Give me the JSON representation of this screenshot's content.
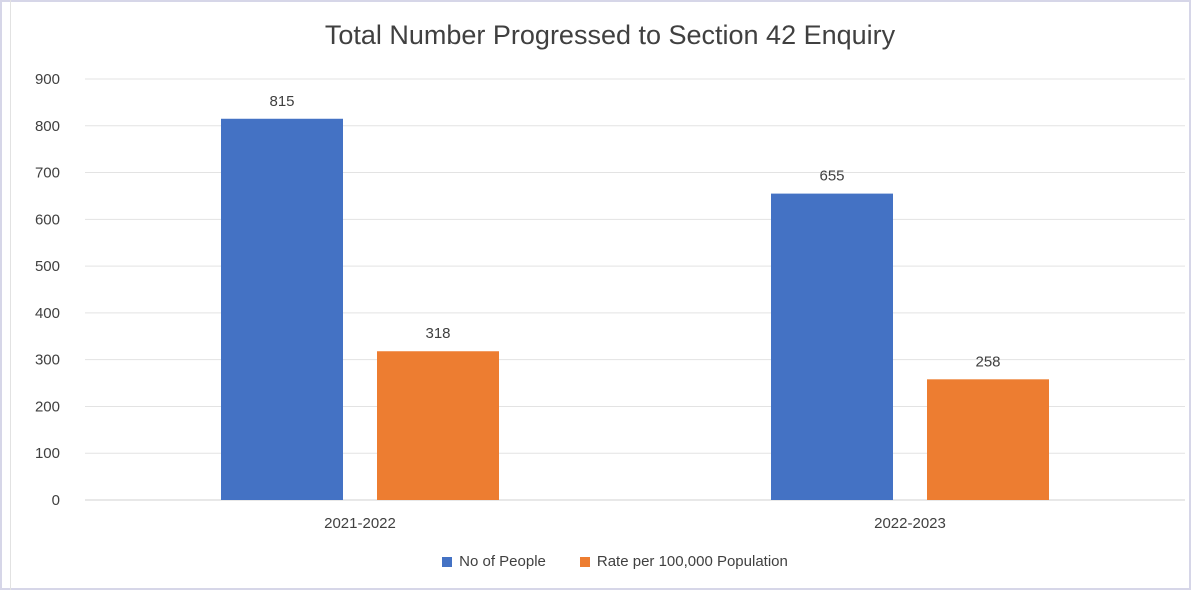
{
  "chart_data": {
    "type": "bar",
    "title": "Total Number Progressed to Section 42 Enquiry",
    "categories": [
      "2021-2022",
      "2022-2023"
    ],
    "series": [
      {
        "name": "No of People",
        "values": [
          815,
          655
        ],
        "color": "#4472c4"
      },
      {
        "name": "Rate per 100,000 Population",
        "values": [
          318,
          258
        ],
        "color": "#ed7d31"
      }
    ],
    "ylim": [
      0,
      900
    ],
    "yticks": [
      0,
      100,
      200,
      300,
      400,
      500,
      600,
      700,
      800,
      900
    ],
    "grid": true,
    "legend_position": "bottom",
    "data_labels": true
  }
}
